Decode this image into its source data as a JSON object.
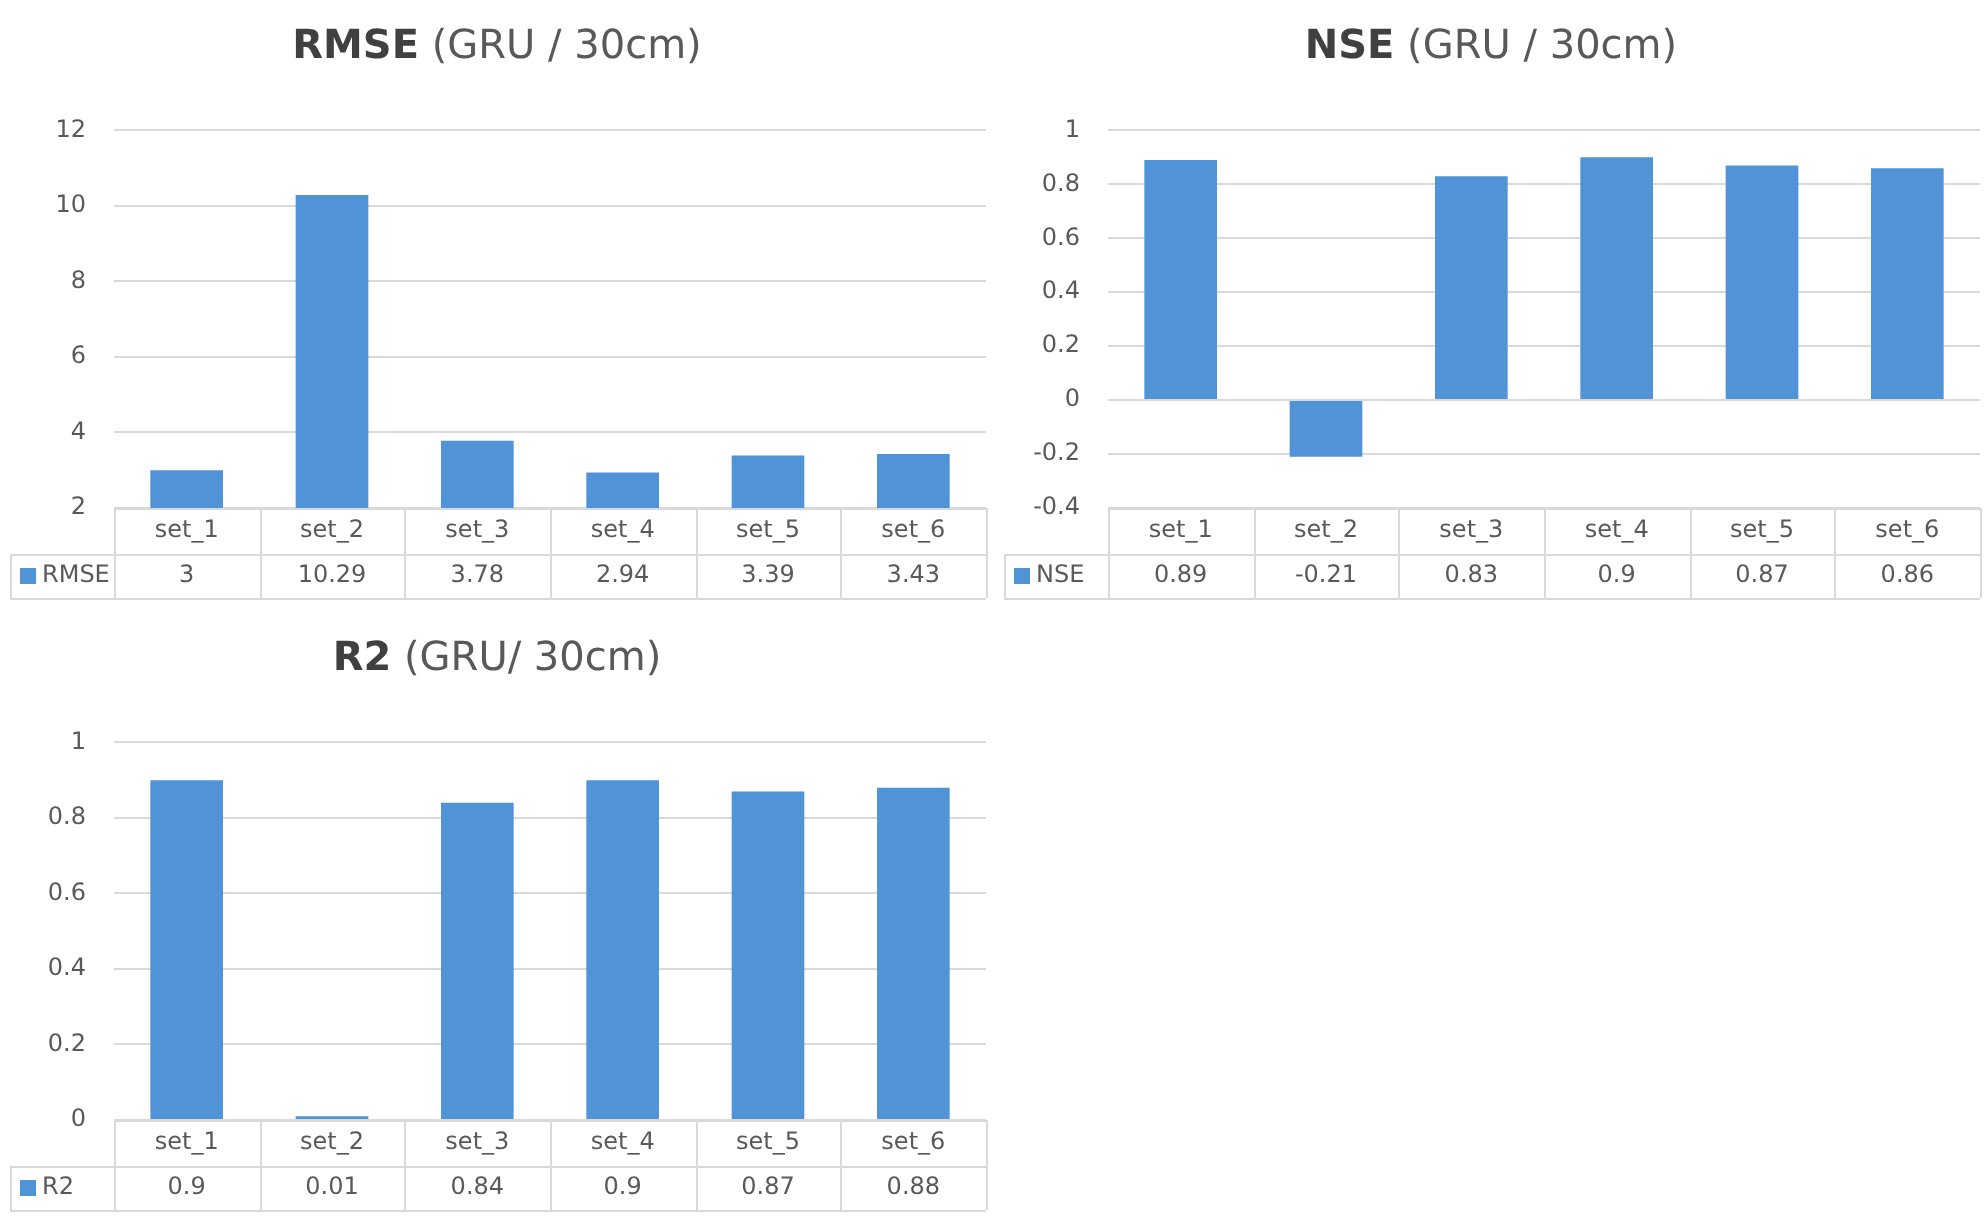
{
  "chart_data": [
    {
      "type": "bar",
      "title": "RMSE (GRU / 30cm)",
      "categories": [
        "set_1",
        "set_2",
        "set_3",
        "set_4",
        "set_5",
        "set_6"
      ],
      "series": [
        {
          "name": "RMSE",
          "color": "#5093d6",
          "values": [
            3,
            10.29,
            3.78,
            2.94,
            3.39,
            3.43
          ]
        }
      ],
      "ylim": [
        2,
        12
      ],
      "yticks": [
        2,
        4,
        6,
        8,
        10,
        12
      ],
      "grid": "y",
      "legend": "bottom",
      "data_labels": true
    },
    {
      "type": "bar",
      "title": "NSE (GRU / 30cm)",
      "categories": [
        "set_1",
        "set_2",
        "set_3",
        "set_4",
        "set_5",
        "set_6"
      ],
      "series": [
        {
          "name": "NSE",
          "color": "#5093d6",
          "values": [
            0.89,
            -0.21,
            0.83,
            0.9,
            0.87,
            0.86
          ]
        }
      ],
      "ylim": [
        -0.4,
        1
      ],
      "yticks": [
        -0.4,
        -0.2,
        0,
        0.2,
        0.4,
        0.6,
        0.8,
        1
      ],
      "grid": "y",
      "legend": "bottom",
      "data_labels": true
    },
    {
      "type": "bar",
      "title": "R2 (GRU/ 30cm)",
      "categories": [
        "set_1",
        "set_2",
        "set_3",
        "set_4",
        "set_5",
        "set_6"
      ],
      "series": [
        {
          "name": "R2",
          "color": "#5093d6",
          "values": [
            0.9,
            0.01,
            0.84,
            0.9,
            0.87,
            0.88
          ]
        }
      ],
      "ylim": [
        0,
        1
      ],
      "yticks": [
        0,
        0.2,
        0.4,
        0.6,
        0.8,
        1
      ],
      "grid": "y",
      "legend": "bottom",
      "data_labels": true
    }
  ]
}
